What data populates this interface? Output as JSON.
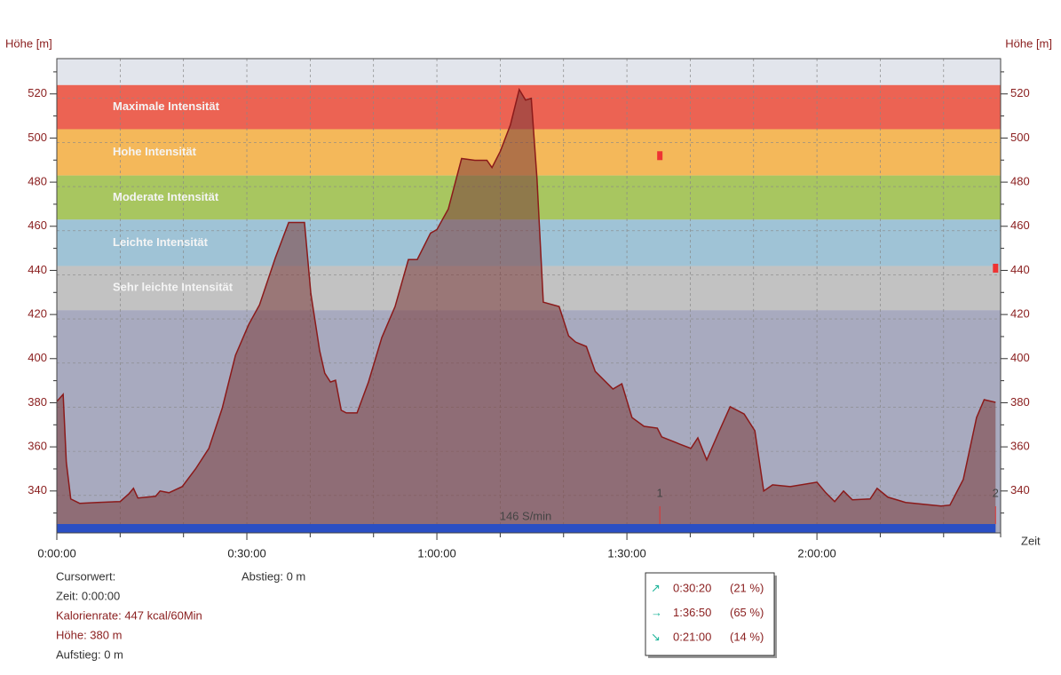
{
  "chart_data": {
    "type": "area",
    "y_label": "Höhe [m]",
    "y2_label": "Höhe [m]",
    "x_label": "Zeit",
    "xlim": [
      0,
      149
    ],
    "ylim": [
      321,
      536
    ],
    "xticks": [
      {
        "value": 0,
        "label": "0:00:00"
      },
      {
        "value": 30,
        "label": "0:30:00"
      },
      {
        "value": 60,
        "label": "1:00:00"
      },
      {
        "value": 90,
        "label": "1:30:00"
      },
      {
        "value": 120,
        "label": "2:00:00"
      }
    ],
    "xminorticks": [
      10,
      20,
      40,
      50,
      70,
      80,
      100,
      110,
      130,
      140,
      149
    ],
    "yticks": [
      340,
      360,
      380,
      400,
      420,
      440,
      460,
      480,
      500,
      520
    ],
    "yminorticks": [
      330,
      350,
      370,
      390,
      410,
      430,
      450,
      470,
      490,
      510,
      530
    ],
    "grid": true,
    "zones": [
      {
        "label": "Maximale Intensität",
        "from": 504,
        "to": 524,
        "color": "#ec6353"
      },
      {
        "label": "Hohe Intensität",
        "from": 483,
        "to": 504,
        "color": "#f4b85a"
      },
      {
        "label": "Moderate Intensität",
        "from": 463,
        "to": 483,
        "color": "#a8c660"
      },
      {
        "label": "Leichte Intensität",
        "from": 442,
        "to": 463,
        "color": "#9fc3d6"
      },
      {
        "label": "Sehr leichte Intensität",
        "from": 422,
        "to": 442,
        "color": "#c2c2c2"
      }
    ],
    "series": [
      {
        "name": "Höhe",
        "color": "#8b1a1a",
        "x": [
          0,
          1.0,
          1.5,
          2.2,
          3.6,
          6.4,
          10,
          11.4,
          12.1,
          12.8,
          15.6,
          16.3,
          17.7,
          19.8,
          21.9,
          24,
          26.1,
          28.2,
          30.3,
          32,
          34.5,
          36.6,
          39.1,
          40.1,
          41.5,
          42.3,
          43.2,
          44,
          44.9,
          45.7,
          47.4,
          49.2,
          51.3,
          53.4,
          55.5,
          56.9,
          59,
          60,
          61.8,
          63.9,
          66,
          67.9,
          68.7,
          70,
          71.6,
          73,
          74,
          74.9,
          75.8,
          76.8,
          79.3,
          80.8,
          81.9,
          83.6,
          85,
          87.8,
          89.2,
          90.8,
          92.7,
          94.8,
          95.5,
          98.3,
          100.1,
          101.2,
          102.6,
          104.6,
          106.3,
          108.5,
          110.2,
          111.6,
          113,
          115.8,
          120,
          121.4,
          122.8,
          124.2,
          125.6,
          128.4,
          129.5,
          131.2,
          134,
          136.8,
          139.6,
          141,
          143.1,
          145.2,
          146.4,
          148.2
        ],
        "values": [
          380.6,
          383.8,
          353,
          336.4,
          334.4,
          334.8,
          335.2,
          338.8,
          341.2,
          336.8,
          337.6,
          340,
          339.2,
          342,
          350,
          359.3,
          377.4,
          401.5,
          415.5,
          424.4,
          445.7,
          461.7,
          461.7,
          429.6,
          403.5,
          393.4,
          389.4,
          390.2,
          376.6,
          375.4,
          375.4,
          389.4,
          409.5,
          423.6,
          444.9,
          444.9,
          456.9,
          458.5,
          467.8,
          490.7,
          489.9,
          489.9,
          486.6,
          493.9,
          505.9,
          522,
          517.2,
          518,
          481.8,
          425.6,
          423.6,
          410.3,
          407.5,
          405.5,
          394.2,
          386.2,
          388.6,
          373.3,
          369.3,
          368.5,
          364.5,
          361.3,
          359.3,
          364.1,
          354.1,
          367.3,
          378.2,
          374.9,
          367.3,
          340,
          342.8,
          342,
          344,
          339.2,
          335.2,
          340,
          336,
          336.4,
          341.2,
          337.2,
          334.8,
          334,
          333.2,
          333.6,
          345.2,
          373.3,
          381.4,
          380.2
        ]
      }
    ],
    "markers": [
      {
        "label": "1",
        "x": 95.2,
        "y": 492
      },
      {
        "label": "2",
        "x": 148.2,
        "y": 441
      }
    ],
    "cadence": {
      "label": "146 S/min",
      "color": "#2a4fc4"
    }
  },
  "info": {
    "title": "Cursorwert:",
    "zeit": "Zeit: 0:00:00",
    "kalorien": "Kalorienrate: 447 kcal/60Min",
    "hoehe": "Höhe:  380 m",
    "aufstieg": "Aufstieg: 0 m",
    "abstieg": "Abstieg: 0 m"
  },
  "stats": [
    {
      "icon": "↗",
      "time": "0:30:20",
      "percent": "(21 %)"
    },
    {
      "icon": "→",
      "time": "1:36:50",
      "percent": "(65 %)"
    },
    {
      "icon": "↘",
      "time": "0:21:00",
      "percent": "(14 %)"
    }
  ]
}
